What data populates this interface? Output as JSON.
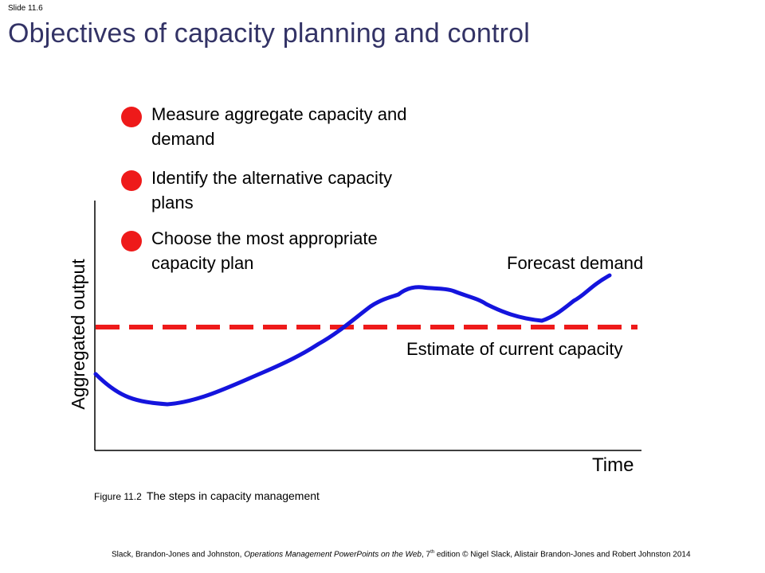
{
  "slide": {
    "number_label": "Slide 11.6",
    "title": "Objectives of capacity planning and control"
  },
  "bullets": [
    {
      "text": "Measure aggregate capacity and demand"
    },
    {
      "text": "Identify the alternative capacity plans"
    },
    {
      "text": "Choose the most appropriate capacity plan"
    }
  ],
  "colors": {
    "title": "#333366",
    "bullet": "#ee1a1a",
    "demand_line": "#1414dd",
    "capacity_line": "#ee1a1a"
  },
  "figure": {
    "y_axis_label": "Aggregated output",
    "x_axis_label": "Time",
    "demand_label": "Forecast demand",
    "capacity_label": "Estimate of current capacity",
    "caption_number": "Figure 11.2",
    "caption_text": "The steps in capacity management"
  },
  "footer": {
    "authors": "Slack, Brandon-Jones and Johnston,",
    "book": "Operations Management PowerPoints on the Web",
    "edition_prefix": ", 7",
    "edition_sup": "th",
    "rest": " edition © Nigel Slack, Alistair Brandon-Jones and Robert Johnston 2014"
  }
}
